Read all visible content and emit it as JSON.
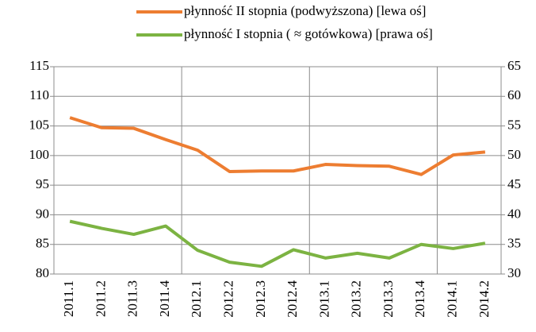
{
  "chart_data": {
    "type": "line",
    "categories": [
      "2011.1",
      "2011.2",
      "2011.3",
      "2011.4",
      "2012.1",
      "2012.2",
      "2012.3",
      "2012.4",
      "2013.1",
      "2013.2",
      "2013.3",
      "2013.4",
      "2014.1",
      "2014.2"
    ],
    "series": [
      {
        "name": "płynność II stopnia (podwyższona) [lewa oś]",
        "color": "#ed7d31",
        "axis": "y",
        "values": [
          106.4,
          104.7,
          104.6,
          102.7,
          100.9,
          97.3,
          97.4,
          97.4,
          98.5,
          98.3,
          98.2,
          96.8,
          100.1,
          100.6
        ]
      },
      {
        "name": "płynność I stopnia ( ≈ gotówkowa) [prawa oś]",
        "color": "#7cb342",
        "axis": "y2",
        "values": [
          38.9,
          37.7,
          36.7,
          38.1,
          34.0,
          32.0,
          31.3,
          34.1,
          32.7,
          33.5,
          32.7,
          35.0,
          34.3,
          35.2
        ]
      }
    ],
    "ylim": [
      80,
      115
    ],
    "yticks": [
      80,
      85,
      90,
      95,
      100,
      105,
      110,
      115
    ],
    "y2lim": [
      30,
      65
    ],
    "y2ticks": [
      30,
      35,
      40,
      45,
      50,
      55,
      60,
      65
    ],
    "grid": true
  }
}
